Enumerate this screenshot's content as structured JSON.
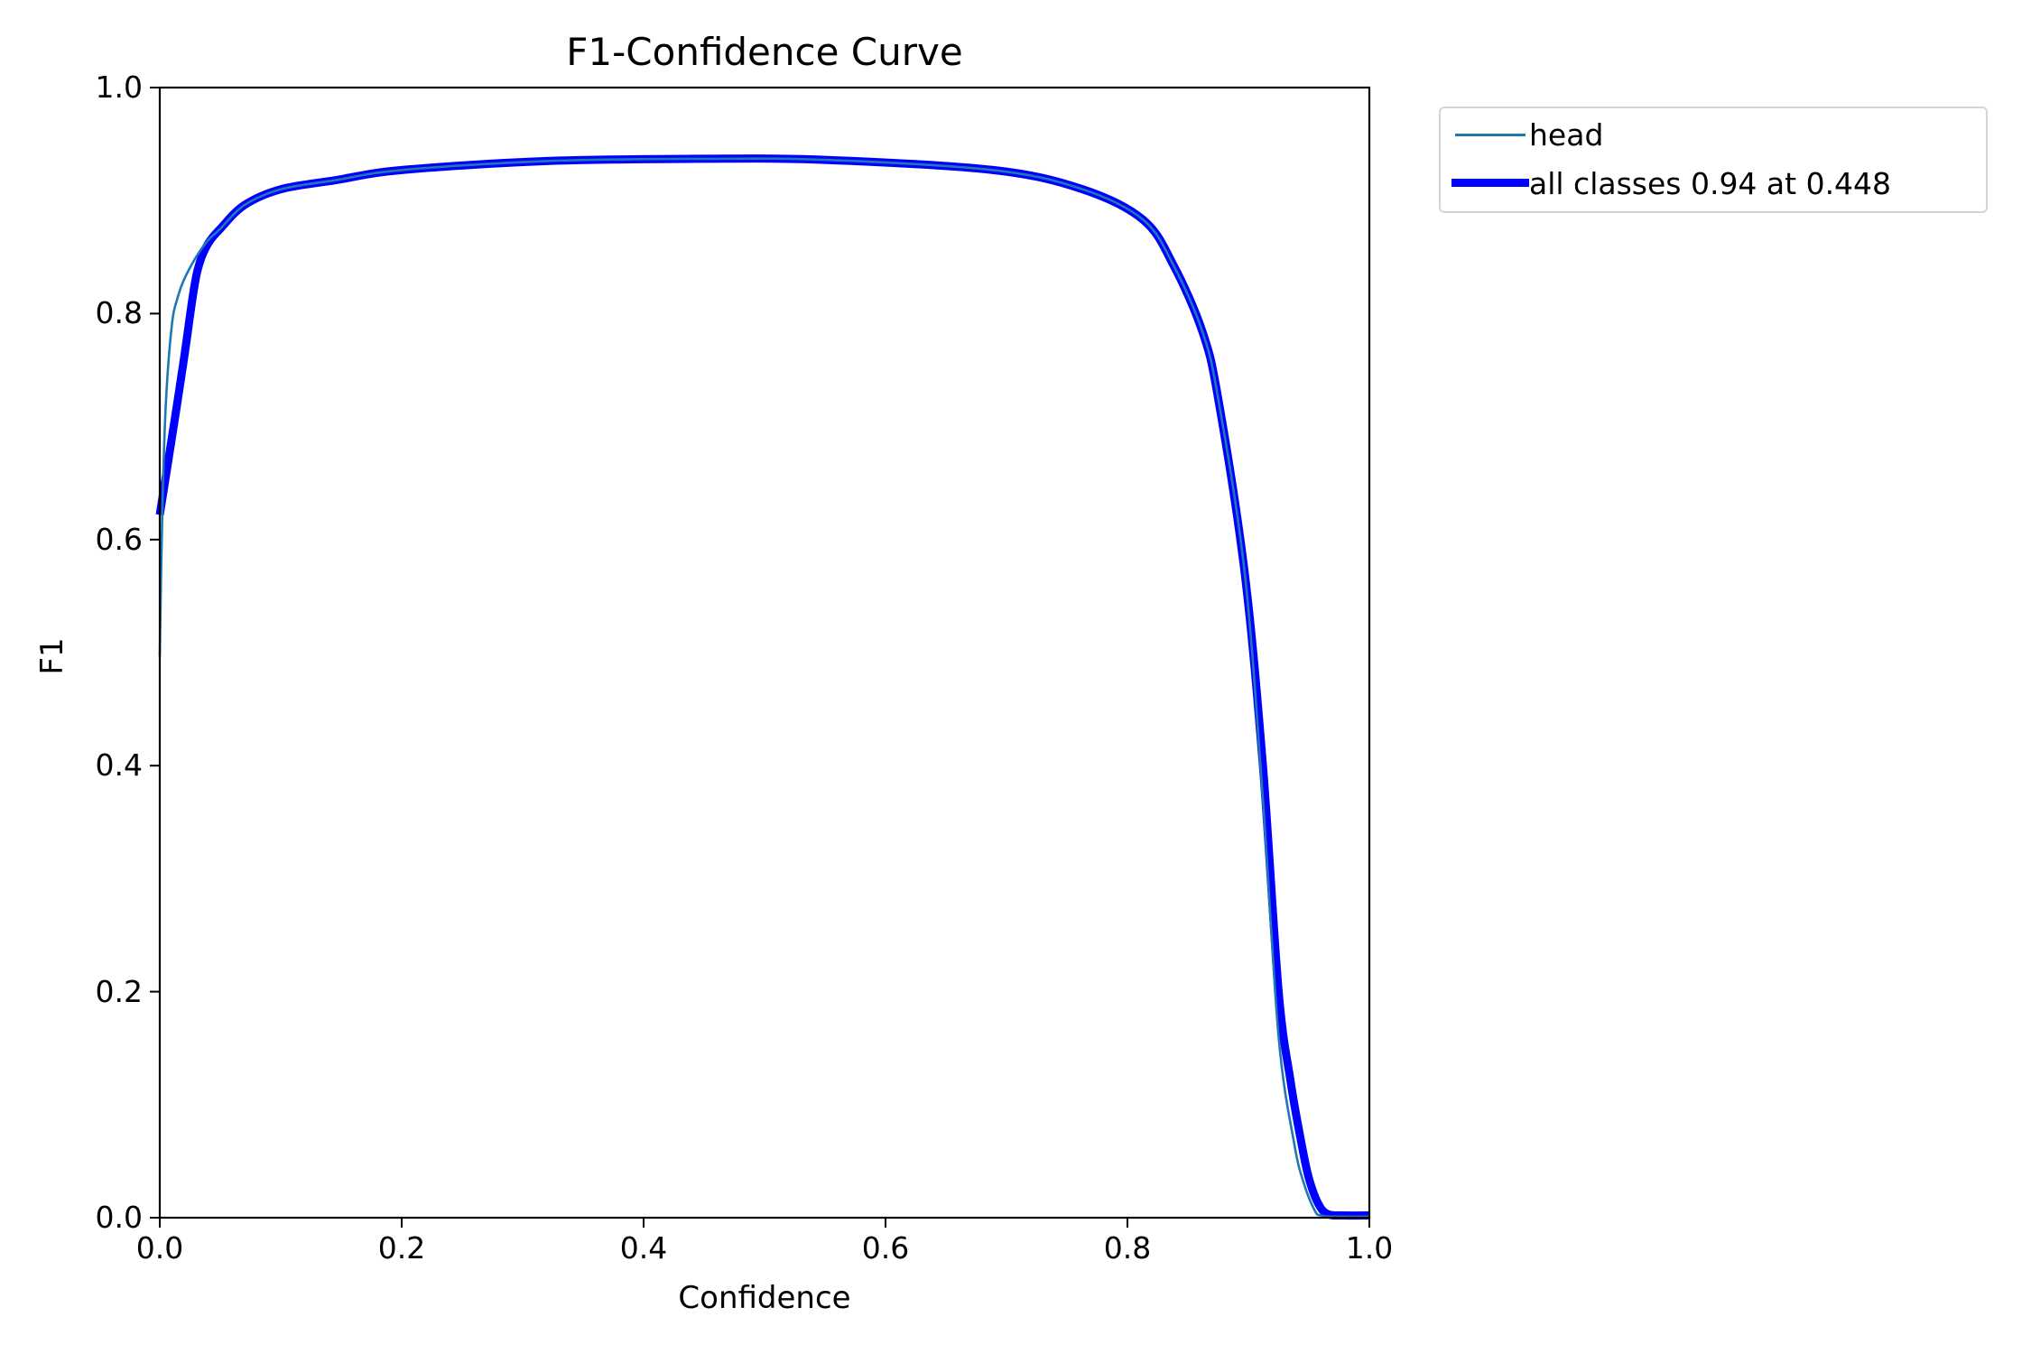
{
  "chart_data": {
    "type": "line",
    "title": "F1-Confidence Curve",
    "xlabel": "Confidence",
    "ylabel": "F1",
    "xlim": [
      0.0,
      1.0
    ],
    "ylim": [
      0.0,
      1.0
    ],
    "xticks": [
      "0.0",
      "0.2",
      "0.4",
      "0.6",
      "0.8",
      "1.0"
    ],
    "yticks": [
      "0.0",
      "0.2",
      "0.4",
      "0.6",
      "0.8",
      "1.0"
    ],
    "grid": false,
    "legend_position": "outside upper right",
    "series": [
      {
        "name": "head",
        "color": "#1f77b4",
        "linewidth": "thin",
        "x": [
          0.0,
          0.002,
          0.005,
          0.01,
          0.015,
          0.02,
          0.03,
          0.04,
          0.05,
          0.07,
          0.1,
          0.145,
          0.2,
          0.32,
          0.45,
          0.55,
          0.689,
          0.763,
          0.813,
          0.838,
          0.862,
          0.875,
          0.897,
          0.912,
          0.925,
          0.938,
          0.946,
          0.955,
          0.96,
          0.97,
          1.0
        ],
        "y": [
          0.497,
          0.62,
          0.72,
          0.79,
          0.815,
          0.83,
          0.85,
          0.865,
          0.875,
          0.896,
          0.91,
          0.918,
          0.927,
          0.935,
          0.937,
          0.936,
          0.927,
          0.91,
          0.883,
          0.843,
          0.784,
          0.725,
          0.57,
          0.37,
          0.16,
          0.065,
          0.03,
          0.006,
          0.002,
          0.001,
          0.001
        ]
      },
      {
        "name": "all classes 0.94 at 0.448",
        "color": "#0000ff",
        "linewidth": "thick",
        "x": [
          0.0,
          0.01,
          0.02,
          0.028,
          0.033,
          0.04,
          0.05,
          0.07,
          0.1,
          0.145,
          0.2,
          0.32,
          0.448,
          0.55,
          0.689,
          0.763,
          0.813,
          0.838,
          0.862,
          0.875,
          0.897,
          0.912,
          0.925,
          0.935,
          0.944,
          0.95,
          0.958,
          0.966,
          0.98,
          1.0
        ],
        "y": [
          0.622,
          0.69,
          0.76,
          0.82,
          0.845,
          0.862,
          0.875,
          0.896,
          0.91,
          0.918,
          0.927,
          0.935,
          0.937,
          0.936,
          0.927,
          0.91,
          0.883,
          0.843,
          0.784,
          0.725,
          0.57,
          0.4,
          0.2,
          0.12,
          0.065,
          0.035,
          0.012,
          0.003,
          0.002,
          0.002
        ]
      }
    ],
    "annotations": [
      "all classes 0.94 at 0.448"
    ]
  },
  "legend": {
    "items": [
      {
        "label": "head",
        "color": "#1f77b4"
      },
      {
        "label": "all classes 0.94 at 0.448",
        "color": "#0000ff"
      }
    ]
  }
}
